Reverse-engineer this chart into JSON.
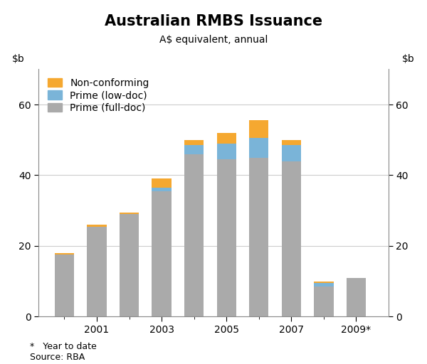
{
  "title": "Australian RMBS Issuance",
  "subtitle": "A$ equivalent, annual",
  "footnote": "*   Year to date\nSource: RBA",
  "years": [
    2000,
    2001,
    2002,
    2003,
    2004,
    2005,
    2006,
    2007,
    2008,
    2009
  ],
  "x_tick_labels": [
    "2001",
    "2003",
    "2005",
    "2007",
    "2009*"
  ],
  "x_tick_positions": [
    2001,
    2003,
    2005,
    2007,
    2009
  ],
  "prime_full_doc": [
    17.5,
    25.5,
    29.0,
    35.5,
    46.0,
    44.5,
    45.0,
    44.0,
    8.5,
    11.0
  ],
  "prime_low_doc": [
    0.0,
    0.0,
    0.0,
    1.0,
    2.5,
    4.5,
    5.5,
    4.5,
    1.0,
    0.0
  ],
  "non_conforming": [
    0.5,
    0.5,
    0.5,
    2.5,
    1.5,
    3.0,
    5.0,
    1.5,
    0.5,
    0.0
  ],
  "color_full_doc": "#aaaaaa",
  "color_low_doc": "#7ab4d8",
  "color_non_conforming": "#f5a830",
  "ylim": [
    0,
    70
  ],
  "yticks": [
    0,
    20,
    40,
    60
  ],
  "bar_width": 0.6,
  "legend_labels": [
    "Non-conforming",
    "Prime (low-doc)",
    "Prime (full-doc)"
  ],
  "legend_colors": [
    "#f5a830",
    "#7ab4d8",
    "#aaaaaa"
  ],
  "title_fontsize": 15,
  "subtitle_fontsize": 10,
  "tick_fontsize": 10,
  "legend_fontsize": 10,
  "footnote_fontsize": 9
}
